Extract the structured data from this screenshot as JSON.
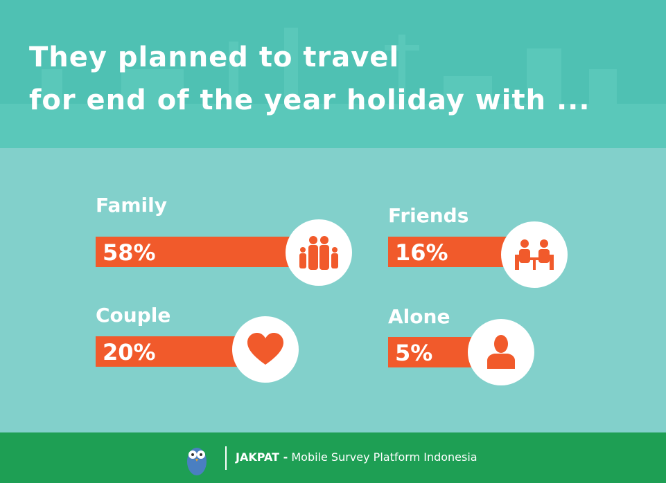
{
  "header": {
    "title_lines": [
      "They planned to travel",
      "for end of the year holiday with ..."
    ]
  },
  "items": [
    {
      "label": "Family",
      "value": "58%"
    },
    {
      "label": "Friends",
      "value": "16%"
    },
    {
      "label": "Couple",
      "value": "20%"
    },
    {
      "label": "Alone",
      "value": "5%"
    }
  ],
  "footer": {
    "brand": "JAKPAT -",
    "tagline": "Mobile Survey Platform Indonesia"
  }
}
